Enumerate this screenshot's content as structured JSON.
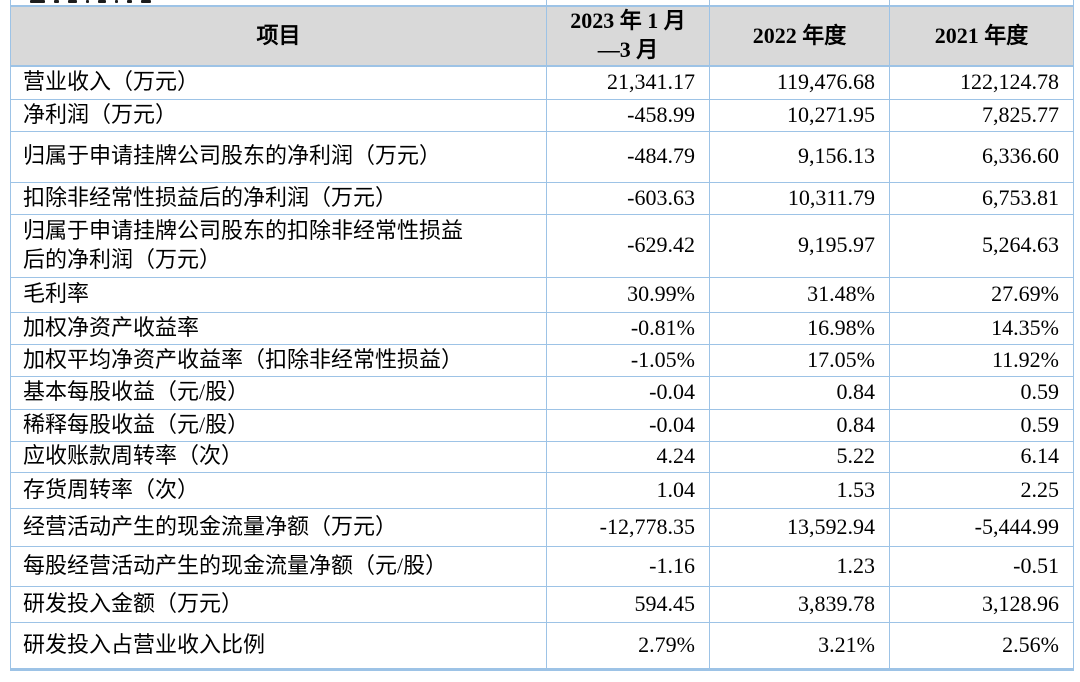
{
  "colors": {
    "border": "#9DC3E6",
    "header_bg": "#D9D9D9",
    "text": "#000000"
  },
  "table": {
    "columns": [
      "项目",
      "2023 年 1 月\n—3 月",
      "2022 年度",
      "2021 年度"
    ],
    "rows": [
      {
        "label": "营业收入（万元）",
        "values": [
          "21,341.17",
          "119,476.68",
          "122,124.78"
        ]
      },
      {
        "label": "净利润（万元）",
        "values": [
          "-458.99",
          "10,271.95",
          "7,825.77"
        ]
      },
      {
        "label": "归属于申请挂牌公司股东的净利润（万元）",
        "values": [
          "-484.79",
          "9,156.13",
          "6,336.60"
        ]
      },
      {
        "label": "扣除非经常性损益后的净利润（万元）",
        "values": [
          "-603.63",
          "10,311.79",
          "6,753.81"
        ]
      },
      {
        "label": "归属于申请挂牌公司股东的扣除非经常性损益\n后的净利润（万元）",
        "values": [
          "-629.42",
          "9,195.97",
          "5,264.63"
        ]
      },
      {
        "label": "毛利率",
        "values": [
          "30.99%",
          "31.48%",
          "27.69%"
        ]
      },
      {
        "label": "加权净资产收益率",
        "values": [
          "-0.81%",
          "16.98%",
          "14.35%"
        ]
      },
      {
        "label": "加权平均净资产收益率（扣除非经常性损益）",
        "values": [
          "-1.05%",
          "17.05%",
          "11.92%"
        ]
      },
      {
        "label": "基本每股收益（元/股）",
        "values": [
          "-0.04",
          "0.84",
          "0.59"
        ]
      },
      {
        "label": "稀释每股收益（元/股）",
        "values": [
          "-0.04",
          "0.84",
          "0.59"
        ]
      },
      {
        "label": "应收账款周转率（次）",
        "values": [
          "4.24",
          "5.22",
          "6.14"
        ]
      },
      {
        "label": "存货周转率（次）",
        "values": [
          "1.04",
          "1.53",
          "2.25"
        ]
      },
      {
        "label": "经营活动产生的现金流量净额（万元）",
        "values": [
          "-12,778.35",
          "13,592.94",
          "-5,444.99"
        ]
      },
      {
        "label": "每股经营活动产生的现金流量净额（元/股）",
        "values": [
          "-1.16",
          "1.23",
          "-0.51"
        ]
      },
      {
        "label": "研发投入金额（万元）",
        "values": [
          "594.45",
          "3,839.78",
          "3,128.96"
        ]
      },
      {
        "label": "研发投入占营业收入比例",
        "values": [
          "2.79%",
          "3.21%",
          "2.56%"
        ]
      }
    ]
  }
}
